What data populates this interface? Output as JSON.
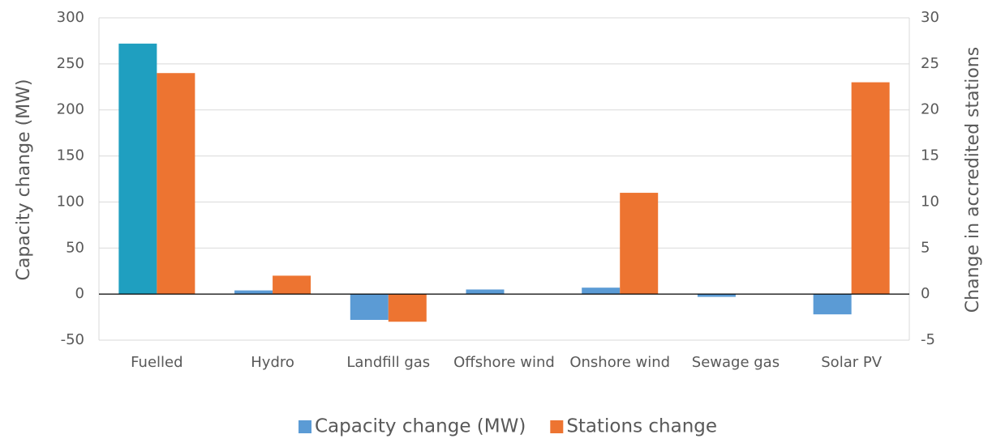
{
  "chart_data": {
    "type": "bar",
    "categories": [
      "Fuelled",
      "Hydro",
      "Landfill gas",
      "Offshore wind",
      "Onshore wind",
      "Sewage gas",
      "Solar PV"
    ],
    "series": [
      {
        "name": "Capacity change (MW)",
        "color": "#5b9bd5",
        "colors": [
          "#1f9fc0",
          "#5b9bd5",
          "#5b9bd5",
          "#5b9bd5",
          "#5b9bd5",
          "#5b9bd5",
          "#5b9bd5"
        ],
        "values": [
          272,
          4,
          -28,
          5,
          7,
          -3,
          -22
        ]
      },
      {
        "name": "Stations change",
        "color": "#ed7431",
        "axis": "y2",
        "values": [
          24,
          2,
          -3,
          0,
          11,
          0,
          23
        ]
      }
    ],
    "ylabel": "Capacity change (MW)",
    "y2label": "Change in accredited stations",
    "ylim": [
      -50,
      300
    ],
    "yticks": [
      -50,
      0,
      50,
      100,
      150,
      200,
      250,
      300
    ],
    "y2lim": [
      -5,
      30
    ],
    "y2ticks": [
      -5,
      0,
      5,
      10,
      15,
      20,
      25,
      30
    ],
    "grid": true,
    "legend": "bottom"
  }
}
